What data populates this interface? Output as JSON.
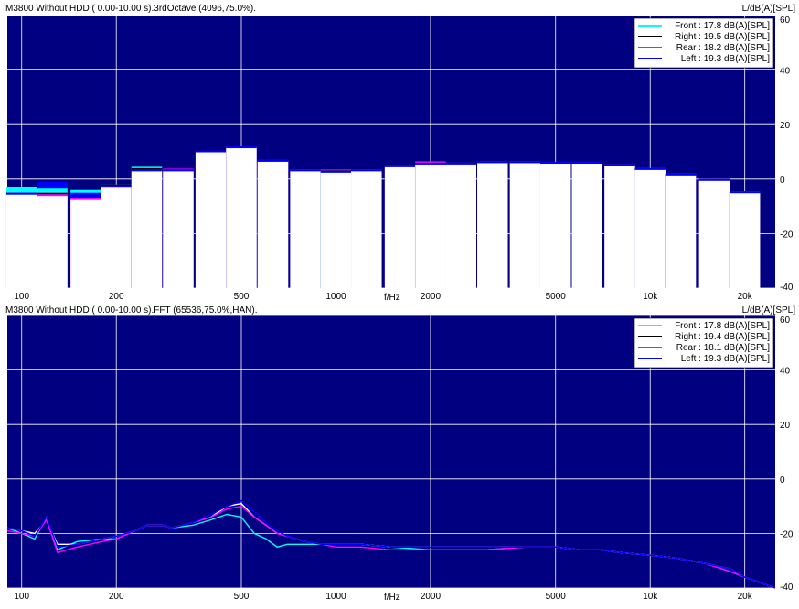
{
  "charts": [
    {
      "header": "M3800  Without HDD ( 0.00-10.00 s).3rdOctave (4096,75.0%).",
      "yunit": "L/dB(A)[SPL]",
      "xunit": "f/Hz",
      "xticks": [
        "100",
        "200",
        "500",
        "1000",
        "2000",
        "5000",
        "10k",
        "20k"
      ],
      "yticks": [
        "60",
        "40",
        "20",
        "0",
        "-20",
        "-40"
      ],
      "legend": [
        "Front : 17.8 dB(A)[SPL]",
        "Right : 19.5 dB(A)[SPL]",
        "Rear : 18.2 dB(A)[SPL]",
        "Left : 19.3 dB(A)[SPL]"
      ]
    },
    {
      "header": "M3800  Without HDD ( 0.00-10.00 s).FFT (65536,75.0%,HAN).",
      "yunit": "L/dB(A)[SPL]",
      "xunit": "f/Hz",
      "xticks": [
        "100",
        "200",
        "500",
        "1000",
        "2000",
        "5000",
        "10k",
        "20k"
      ],
      "yticks": [
        "60",
        "40",
        "20",
        "0",
        "-20",
        "-40"
      ],
      "legend": [
        "Front : 17.8 dB(A)[SPL]",
        "Right : 19.4 dB(A)[SPL]",
        "Rear : 18.1 dB(A)[SPL]",
        "Left : 19.3 dB(A)[SPL]"
      ]
    }
  ],
  "colors": {
    "background": "#000080",
    "grid": "#ffffff",
    "front": "#00ffff",
    "right": "#000000",
    "rear": "#ff00ff",
    "left": "#0000ff",
    "bar": "#ffffff"
  },
  "chart_data": [
    {
      "type": "bar",
      "title": "M3800  Without HDD ( 0.00-10.00 s).3rdOctave (4096,75.0%).",
      "xlabel": "f/Hz",
      "ylabel": "L/dB(A)[SPL]",
      "xscale": "log",
      "xlim": [
        90,
        25000
      ],
      "ylim": [
        -40,
        60
      ],
      "grid": true,
      "legend_position": "top-right",
      "x": [
        100,
        125,
        160,
        200,
        250,
        315,
        400,
        500,
        630,
        800,
        1000,
        1250,
        1600,
        2000,
        2500,
        3150,
        4000,
        5000,
        6300,
        8000,
        10000,
        12500,
        16000,
        20000
      ],
      "series": [
        {
          "name": "Front : 17.8 dB(A)[SPL]",
          "values": [
            -3,
            -3.5,
            -4,
            -2,
            4.5,
            3.5,
            10.5,
            12,
            7,
            3.5,
            3,
            3.5,
            5,
            6,
            6,
            6.5,
            6.5,
            6.3,
            6.3,
            5.5,
            4,
            2,
            0,
            -4.5
          ]
        },
        {
          "name": "Right : 19.5 dB(A)[SPL]",
          "values": [
            -5,
            -5,
            -6.5,
            -2,
            4,
            3.5,
            10.5,
            12,
            7,
            3.5,
            3.2,
            3.5,
            5,
            6,
            6,
            6.5,
            6.5,
            6.3,
            6.3,
            5.5,
            4,
            2,
            0,
            -4.5
          ]
        },
        {
          "name": "Rear : 18.2 dB(A)[SPL]",
          "values": [
            -5,
            -5.5,
            -7,
            -2.5,
            3.5,
            3.8,
            10.5,
            12,
            7,
            3.5,
            3.5,
            3.5,
            5,
            6.5,
            6,
            6.5,
            6.5,
            6.3,
            6.3,
            5.5,
            4,
            2,
            0,
            -4.5
          ]
        },
        {
          "name": "Left : 19.3 dB(A)[SPL]",
          "values": [
            -5,
            -1,
            -5,
            -2.5,
            3.5,
            3.5,
            10.5,
            12,
            7,
            3.5,
            3,
            3.5,
            5,
            6,
            6,
            6.5,
            6.5,
            6.3,
            6.3,
            5.5,
            4,
            2,
            0,
            -4.5
          ]
        }
      ]
    },
    {
      "type": "line",
      "title": "M3800  Without HDD ( 0.00-10.00 s).FFT (65536,75.0%,HAN).",
      "xlabel": "f/Hz",
      "ylabel": "L/dB(A)[SPL]",
      "xscale": "log",
      "xlim": [
        90,
        25000
      ],
      "ylim": [
        -40,
        60
      ],
      "grid": true,
      "legend_position": "top-right",
      "x": [
        90,
        100,
        110,
        120,
        130,
        150,
        180,
        200,
        230,
        250,
        280,
        300,
        350,
        400,
        450,
        500,
        550,
        600,
        650,
        700,
        800,
        900,
        1000,
        1200,
        1500,
        2000,
        3000,
        4000,
        5000,
        6000,
        7000,
        8000,
        10000,
        12000,
        15000,
        18000,
        20000,
        25000
      ],
      "series": [
        {
          "name": "Front : 17.8 dB(A)[SPL]",
          "values": [
            -18,
            -20,
            -22,
            -14,
            -26,
            -23,
            -22,
            -22,
            -19,
            -17,
            -17,
            -18,
            -17,
            -15,
            -13,
            -14,
            -20,
            -22,
            -25,
            -24,
            -24,
            -24,
            -24,
            -24,
            -25,
            -26,
            -26,
            -25,
            -25,
            -26,
            -26,
            -27,
            -28,
            -29,
            -31,
            -34,
            -36,
            -40
          ]
        },
        {
          "name": "Right : 19.4 dB(A)[SPL]",
          "values": [
            -18,
            -19,
            -20,
            -15,
            -24,
            -24,
            -22,
            -21,
            -19,
            -17,
            -17,
            -18,
            -16,
            -14,
            -10,
            -9,
            -14,
            -17,
            -20,
            -21,
            -23,
            -24,
            -24,
            -24,
            -25,
            -25,
            -25,
            -25,
            -25,
            -26,
            -26,
            -27,
            -28,
            -29,
            -31,
            -33,
            -36,
            -40
          ]
        },
        {
          "name": "Rear : 18.1 dB(A)[SPL]",
          "values": [
            -19,
            -20,
            -21,
            -15,
            -27,
            -25,
            -23,
            -22,
            -19,
            -17,
            -17,
            -18,
            -16,
            -14,
            -11,
            -10,
            -14,
            -17,
            -20,
            -21,
            -23,
            -24,
            -25,
            -25,
            -26,
            -26,
            -26,
            -25,
            -25,
            -26,
            -26,
            -27,
            -28,
            -29,
            -31,
            -34,
            -36,
            -40
          ]
        },
        {
          "name": "Left : 19.3 dB(A)[SPL]",
          "values": [
            -18,
            -19,
            -21,
            -14,
            -25,
            -24,
            -22,
            -21,
            -19,
            -17,
            -17,
            -18,
            -16,
            -13,
            -10,
            -8,
            -12,
            -16,
            -19,
            -21,
            -23,
            -24,
            -24,
            -24,
            -25,
            -25,
            -25,
            -25,
            -25,
            -26,
            -26,
            -27,
            -28,
            -29,
            -31,
            -33,
            -36,
            -40
          ]
        }
      ]
    }
  ]
}
